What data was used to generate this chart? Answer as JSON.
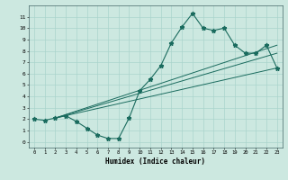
{
  "title": "",
  "xlabel": "Humidex (Indice chaleur)",
  "bg_color": "#cce8e0",
  "grid_color": "#aad4cc",
  "line_color": "#1a6b5e",
  "xlim": [
    -0.5,
    23.5
  ],
  "ylim": [
    -0.5,
    12.0
  ],
  "xticks": [
    0,
    1,
    2,
    3,
    4,
    5,
    6,
    7,
    8,
    9,
    10,
    11,
    12,
    13,
    14,
    15,
    16,
    17,
    18,
    19,
    20,
    21,
    22,
    23
  ],
  "yticks": [
    0,
    1,
    2,
    3,
    4,
    5,
    6,
    7,
    8,
    9,
    10,
    11
  ],
  "main_curve_x": [
    0,
    1,
    2,
    3,
    4,
    5,
    6,
    7,
    8,
    9,
    10,
    11,
    12,
    13,
    14,
    15,
    16,
    17,
    18,
    19,
    20,
    21,
    22,
    23
  ],
  "main_curve_y": [
    2.0,
    1.9,
    2.1,
    2.3,
    1.8,
    1.2,
    0.6,
    0.3,
    0.3,
    2.1,
    4.5,
    5.5,
    6.7,
    8.7,
    10.1,
    11.3,
    10.0,
    9.8,
    10.0,
    8.5,
    7.8,
    7.8,
    8.5,
    6.5
  ],
  "line1_x": [
    2,
    23
  ],
  "line1_y": [
    2.1,
    8.5
  ],
  "line2_x": [
    2,
    23
  ],
  "line2_y": [
    2.1,
    7.8
  ],
  "line3_x": [
    2,
    23
  ],
  "line3_y": [
    2.1,
    6.5
  ]
}
